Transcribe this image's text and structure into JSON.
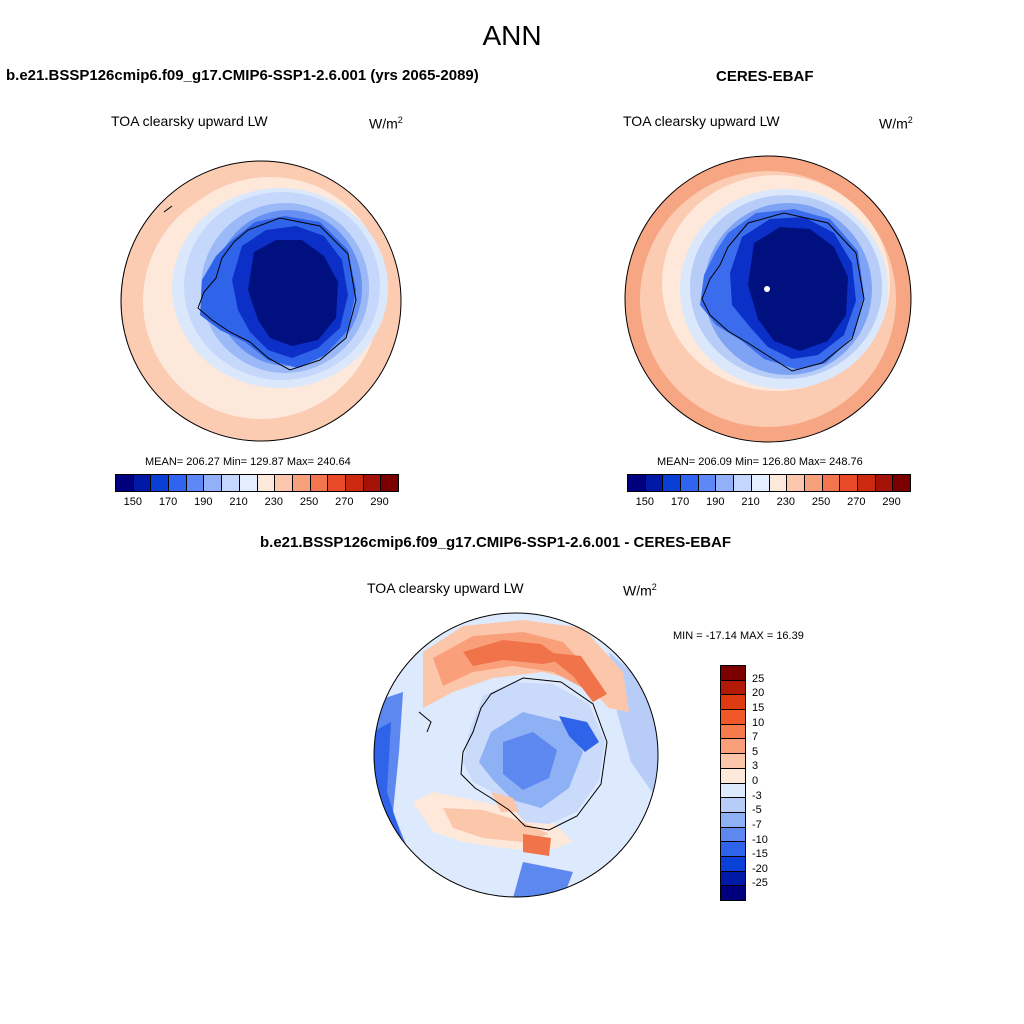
{
  "title": "ANN",
  "panels": {
    "model": {
      "title": "b.e21.BSSP126cmip6.f09_g17.CMIP6-SSP1-2.6.001 (yrs 2065-2089)",
      "variable": "TOA clearsky upward LW",
      "units_base": "W/m",
      "units_exp": "2",
      "stats": "MEAN= 206.27  Min= 129.87  Max= 240.64",
      "mean": 206.27,
      "min": 129.87,
      "max": 240.64
    },
    "obs": {
      "title": "CERES-EBAF",
      "variable": "TOA clearsky upward LW",
      "units_base": "W/m",
      "units_exp": "2",
      "stats": "MEAN= 206.09  Min= 126.80  Max= 248.76",
      "mean": 206.09,
      "min": 126.8,
      "max": 248.76
    },
    "diff": {
      "title": "b.e21.BSSP126cmip6.f09_g17.CMIP6-SSP1-2.6.001 - CERES-EBAF",
      "variable": "TOA clearsky upward LW",
      "units_base": "W/m",
      "units_exp": "2",
      "stats": "MIN = -17.14 MAX =  16.39",
      "min": -17.14,
      "max": 16.39
    }
  },
  "colorbar_abs": {
    "labels": [
      "150",
      "170",
      "190",
      "210",
      "230",
      "250",
      "270",
      "290"
    ],
    "colors": [
      "#00007f",
      "#0019a6",
      "#0a3fd6",
      "#2f63f0",
      "#5d88f5",
      "#93b1f8",
      "#c4d6fb",
      "#e4eefe",
      "#fde9dc",
      "#fbc8ae",
      "#f7a07c",
      "#f2754f",
      "#e84a27",
      "#cc2a10",
      "#a41106",
      "#7a0000"
    ]
  },
  "colorbar_diff": {
    "labels": [
      "25",
      "20",
      "15",
      "10",
      "7",
      "5",
      "3",
      "0",
      "-3",
      "-5",
      "-7",
      "-10",
      "-15",
      "-20",
      "-25"
    ],
    "colors": [
      "#7a0000",
      "#b31a06",
      "#dd3a12",
      "#f0582a",
      "#f57a4c",
      "#f9a07b",
      "#fcc6aa",
      "#fde8da",
      "#dde9fc",
      "#b7cdf8",
      "#8eb0f5",
      "#5d88f0",
      "#2f63ea",
      "#0a40d8",
      "#0019a6",
      "#00007f"
    ]
  }
}
